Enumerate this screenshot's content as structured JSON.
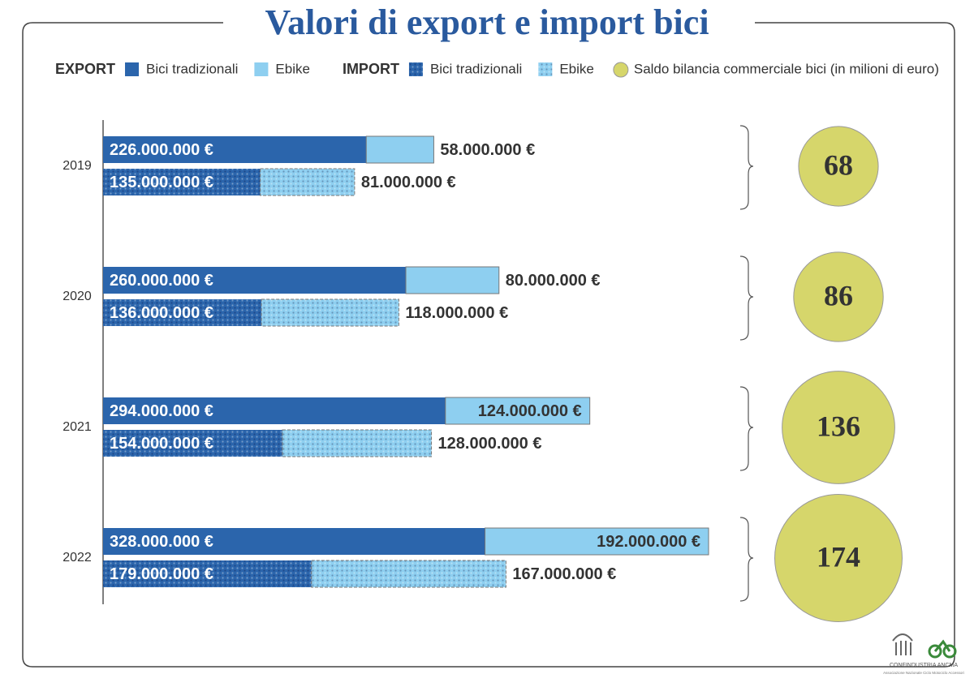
{
  "chart_data": {
    "type": "bar",
    "orientation": "horizontal",
    "stacked": true,
    "title": "Valori di export e import bici",
    "categories": [
      "2019",
      "2020",
      "2021",
      "2022"
    ],
    "series": [
      {
        "name": "Bici tradizionali",
        "group": "EXPORT",
        "color": "#2b65ac",
        "pattern": false,
        "values": [
          226000000,
          260000000,
          294000000,
          328000000
        ],
        "value_labels": [
          "226.000.000 €",
          "260.000.000 €",
          "294.000.000 €",
          "328.000.000 €"
        ]
      },
      {
        "name": "Ebike",
        "group": "EXPORT",
        "color": "#8ecff0",
        "pattern": false,
        "values": [
          58000000,
          80000000,
          124000000,
          192000000
        ],
        "value_labels": [
          "58.000.000 €",
          "80.000.000 €",
          "124.000.000 €",
          "192.000.000 €"
        ]
      },
      {
        "name": "Bici tradizionali",
        "group": "IMPORT",
        "color": "#2b65ac",
        "pattern": true,
        "values": [
          135000000,
          136000000,
          154000000,
          179000000
        ],
        "value_labels": [
          "135.000.000 €",
          "136.000.000 €",
          "154.000.000 €",
          "179.000.000 €"
        ]
      },
      {
        "name": "Ebike",
        "group": "IMPORT",
        "color": "#8ecff0",
        "pattern": true,
        "values": [
          81000000,
          118000000,
          128000000,
          167000000
        ],
        "value_labels": [
          "81.000.000 €",
          "118.000.000 €",
          "128.000.000 €",
          "167.000.000 €"
        ]
      }
    ],
    "balance": {
      "name": "Saldo bilancia commerciale bici (in milioni di euro)",
      "color": "#d6d66b",
      "values": [
        68,
        86,
        136,
        174
      ]
    },
    "logo": {
      "name": "CONFINDUSTRIA ANCMA",
      "subtitle": "Associazione Nazionale Ciclo Motociclo Accessori"
    }
  }
}
